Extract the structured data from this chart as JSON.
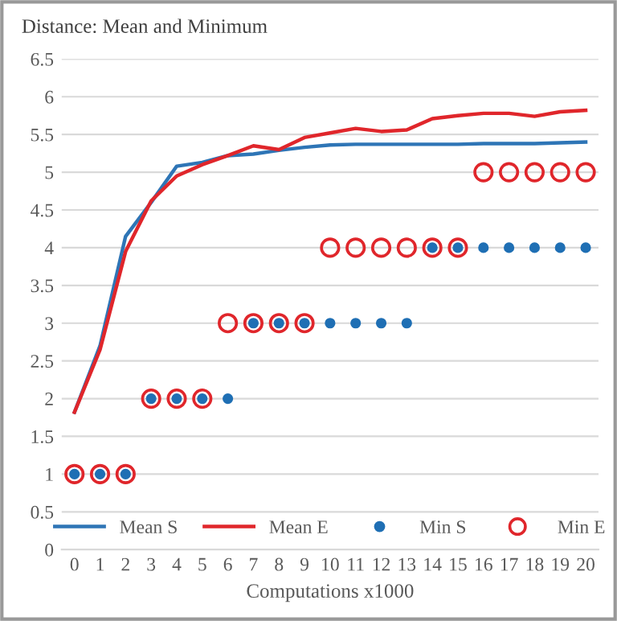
{
  "chart_data": {
    "type": "line",
    "title": "Distance: Mean and Minimum",
    "xlabel": "Computations x1000",
    "categories": [
      "0",
      "1",
      "2",
      "3",
      "4",
      "5",
      "6",
      "7",
      "8",
      "9",
      "10",
      "11",
      "12",
      "13",
      "14",
      "15",
      "16",
      "17",
      "18",
      "19",
      "20"
    ],
    "series": [
      {
        "name": "Mean S",
        "color": "#2e75b6",
        "values": [
          1.82,
          2.7,
          4.15,
          4.6,
          5.08,
          5.13,
          5.22,
          5.24,
          5.29,
          5.33,
          5.36,
          5.37,
          5.37,
          5.37,
          5.37,
          5.37,
          5.38,
          5.38,
          5.38,
          5.39,
          5.4
        ]
      },
      {
        "name": "Mean E",
        "color": "#e0262b",
        "values": [
          1.82,
          2.65,
          3.95,
          4.62,
          4.95,
          5.1,
          5.22,
          5.35,
          5.3,
          5.46,
          5.52,
          5.58,
          5.54,
          5.56,
          5.71,
          5.75,
          5.78,
          5.78,
          5.74,
          5.8,
          5.82
        ]
      },
      {
        "name": "Min S",
        "type": "scatter",
        "color": "#1f6fb4",
        "values": [
          1,
          1,
          1,
          2,
          2,
          2,
          2,
          3,
          3,
          3,
          3,
          3,
          3,
          3,
          4,
          4,
          4,
          4,
          4,
          4,
          4
        ]
      },
      {
        "name": "Min E",
        "type": "scatter",
        "color": "#e0262b",
        "values": [
          1,
          1,
          1,
          2,
          2,
          2,
          3,
          3,
          3,
          3,
          4,
          4,
          4,
          4,
          4,
          4,
          5,
          5,
          5,
          5,
          5
        ]
      }
    ],
    "ylim": [
      0,
      6.5
    ],
    "yticks": [
      0,
      0.5,
      1,
      1.5,
      2,
      2.5,
      3,
      3.5,
      4,
      4.5,
      5,
      5.5,
      6,
      6.5
    ],
    "grid": "y",
    "legend": "bottom",
    "line_style": "solid"
  }
}
